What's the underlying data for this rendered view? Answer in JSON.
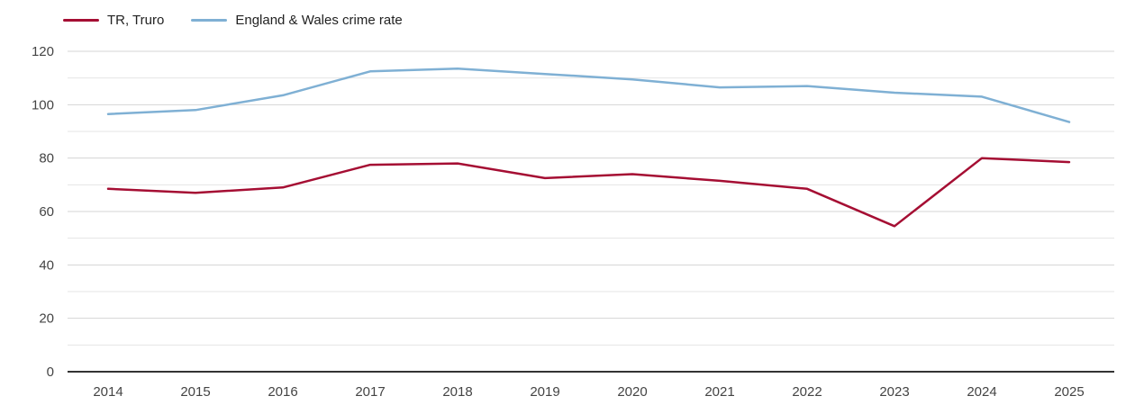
{
  "legend": [
    {
      "label": "TR, Truro",
      "color": "#a50e33"
    },
    {
      "label": "England & Wales crime rate",
      "color": "#7fb0d4"
    }
  ],
  "colors": {
    "truro_line": "#a50e33",
    "england_wales_line": "#7fb0d4",
    "axis_line": "#333333",
    "grid_major": "#d4d4d4",
    "grid_minor": "#e4e4e4",
    "tick_label": "#444444",
    "background": "#ffffff"
  },
  "chart_data": {
    "type": "line",
    "title": "",
    "xlabel": "",
    "ylabel": "",
    "x": [
      2014,
      2015,
      2016,
      2017,
      2018,
      2019,
      2020,
      2021,
      2022,
      2023,
      2024,
      2025
    ],
    "series": [
      {
        "name": "TR, Truro",
        "color": "#a50e33",
        "values": [
          68.5,
          67,
          69,
          77.5,
          78,
          72.5,
          74,
          71.5,
          68.5,
          54.5,
          80,
          78.5
        ]
      },
      {
        "name": "England & Wales crime rate",
        "color": "#7fb0d4",
        "values": [
          96.5,
          98,
          103.5,
          112.5,
          113.5,
          111.5,
          109.5,
          106.5,
          107,
          104.5,
          103,
          93.5
        ]
      }
    ],
    "ylim": [
      0,
      120
    ],
    "yticks": [
      0,
      20,
      40,
      60,
      80,
      100,
      120
    ],
    "grid_step": 10,
    "grid": "horizontal",
    "legend_position": "top-left"
  }
}
